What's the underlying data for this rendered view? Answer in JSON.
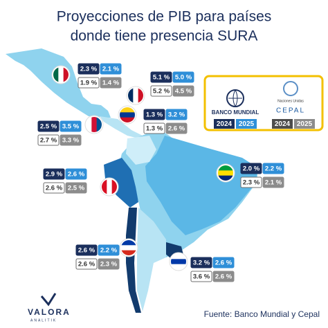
{
  "header": {
    "title_line1": "Proyecciones de PIB para países",
    "title_line2": "donde tiene presencia SURA"
  },
  "legend": {
    "banco_mundial": {
      "label": "BANCO MUNDIAL",
      "year_1": "2024",
      "year_2": "2025"
    },
    "cepal": {
      "org": "Naciones Unidas",
      "label": "CEPAL",
      "year_1": "2024",
      "year_2": "2025"
    }
  },
  "countries": [
    {
      "wb_2024": "2.3 %",
      "wb_2025": "2.1 %",
      "cepal_2024": "1.9 %",
      "cepal_2025": "1.4 %"
    },
    {
      "wb_2024": "5.1 %",
      "wb_2025": "5.0 %",
      "cepal_2024": "5.2 %",
      "cepal_2025": "4.5 %"
    },
    {
      "wb_2024": "1.3 %",
      "wb_2025": "3.2 %",
      "cepal_2024": "1.3 %",
      "cepal_2025": "2.6 %"
    },
    {
      "wb_2024": "2.5 %",
      "wb_2025": "3.5 %",
      "cepal_2024": "2.7 %",
      "cepal_2025": "3.3 %"
    },
    {
      "wb_2024": "2.0 %",
      "wb_2025": "2.2 %",
      "cepal_2024": "2.3 %",
      "cepal_2025": "2.1 %"
    },
    {
      "wb_2024": "2.9 %",
      "wb_2025": "2.6 %",
      "cepal_2024": "2.6 %",
      "cepal_2025": "2.5 %"
    },
    {
      "wb_2024": "2.6 %",
      "wb_2025": "2.2 %",
      "cepal_2024": "2.6 %",
      "cepal_2025": "2.3 %"
    },
    {
      "wb_2024": "3.2 %",
      "wb_2025": "2.6 %",
      "cepal_2024": "3.6 %",
      "cepal_2025": "2.6 %"
    }
  ],
  "footer": {
    "source": "Fuente: Banco Mundial y Cepal",
    "brand": "VALORA",
    "brand_sub": "ANALITIK"
  }
}
